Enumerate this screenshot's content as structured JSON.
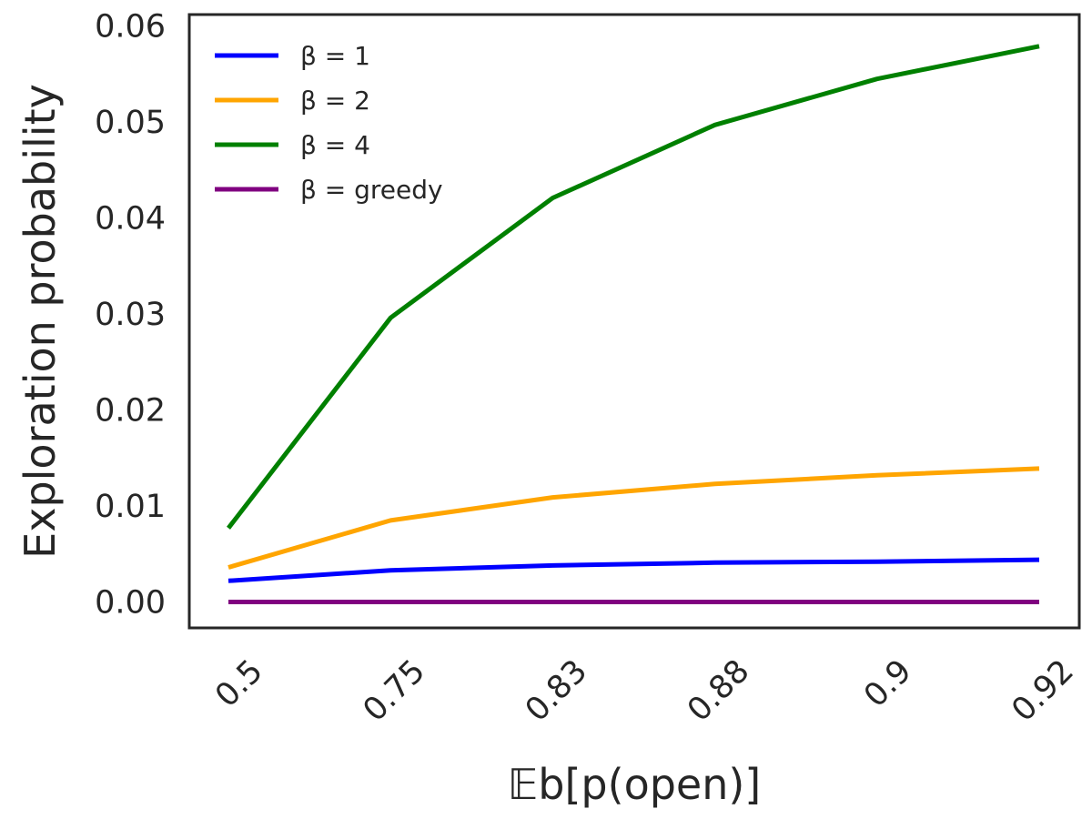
{
  "chart_data": {
    "type": "line",
    "title": "",
    "xlabel": "𝔼b[p(open)]",
    "ylabel": "Exploration probability",
    "categories": [
      "0.5",
      "0.75",
      "0.83",
      "0.88",
      "0.9",
      "0.92"
    ],
    "ylim": [
      -0.0027,
      0.0612
    ],
    "yticks": [
      "0.00",
      "0.01",
      "0.02",
      "0.03",
      "0.04",
      "0.05",
      "0.06"
    ],
    "grid": false,
    "legend_position": "top-left",
    "series": [
      {
        "name": "β = 1",
        "color": "#0000ff",
        "values": [
          0.0022,
          0.0033,
          0.0038,
          0.0041,
          0.0042,
          0.0044
        ]
      },
      {
        "name": "β = 2",
        "color": "#ffa500",
        "values": [
          0.0036,
          0.0085,
          0.0109,
          0.0123,
          0.0132,
          0.0139
        ]
      },
      {
        "name": "β = 4",
        "color": "#008000",
        "values": [
          0.0077,
          0.0296,
          0.0421,
          0.0497,
          0.0545,
          0.0579
        ]
      },
      {
        "name": "β = greedy",
        "color": "#800080",
        "values": [
          0.0,
          0.0,
          0.0,
          0.0,
          0.0,
          0.0
        ]
      }
    ]
  }
}
